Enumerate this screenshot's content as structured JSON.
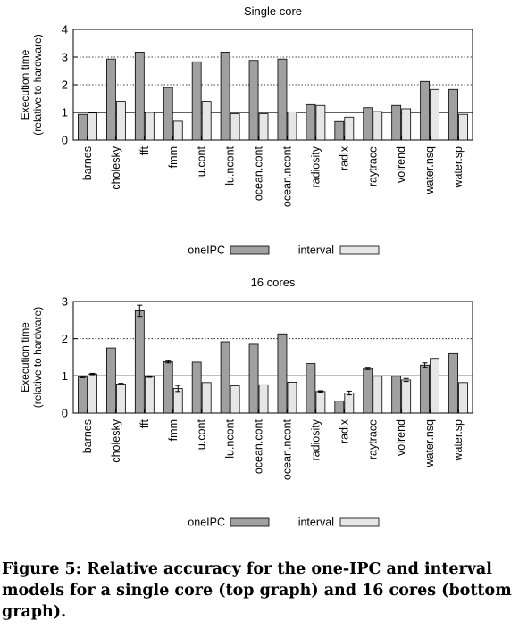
{
  "figure": {
    "caption": "Figure 5: Relative accuracy for the one-IPC and interval models for a single core (top graph) and 16 cores (bottom graph)."
  },
  "colors": {
    "oneIPC": "#a0a0a0",
    "interval": "#e6e6e6",
    "stroke": "#000000"
  },
  "chart_data": [
    {
      "type": "bar",
      "title": "Single core",
      "ylabel": "Execution time (relative to hardware)",
      "ylabel_lines": [
        "Execution time",
        "(relative to hardware)"
      ],
      "xlabel": "",
      "ylim": [
        0,
        4
      ],
      "yticks": [
        0,
        1,
        2,
        3,
        4
      ],
      "grid": "dotted horizontal at 2, 3 and 4; solid reference line at 1",
      "legend_position": "bottom-center",
      "categories": [
        "barnes",
        "cholesky",
        "fft",
        "fmm",
        "lu.cont",
        "lu.ncont",
        "ocean.cont",
        "ocean.ncont",
        "radiosity",
        "radix",
        "raytrace",
        "volrend",
        "water.nsq",
        "water.sp"
      ],
      "series": [
        {
          "name": "oneIPC",
          "values": [
            0.93,
            2.93,
            3.18,
            1.9,
            2.83,
            3.18,
            2.88,
            2.93,
            1.28,
            0.67,
            1.17,
            1.25,
            2.12,
            1.83
          ]
        },
        {
          "name": "interval",
          "values": [
            0.98,
            1.4,
            1.0,
            0.68,
            1.4,
            0.95,
            0.95,
            1.02,
            1.25,
            0.83,
            1.03,
            1.13,
            1.83,
            0.93
          ]
        }
      ]
    },
    {
      "type": "bar",
      "title": "16 cores",
      "ylabel": "Execution time (relative to hardware)",
      "ylabel_lines": [
        "Execution time",
        "(relative to hardware)"
      ],
      "xlabel": "",
      "ylim": [
        0,
        3
      ],
      "yticks": [
        0,
        1,
        2,
        3
      ],
      "grid": "dotted horizontal at 2 and 3; solid reference line at 1",
      "legend_position": "bottom-center",
      "categories": [
        "barnes",
        "cholesky",
        "fft",
        "fmm",
        "lu.cont",
        "lu.ncont",
        "ocean.cont",
        "ocean.ncont",
        "radiosity",
        "radix",
        "raytrace",
        "volrend",
        "water.nsq",
        "water.sp"
      ],
      "series": [
        {
          "name": "oneIPC",
          "values": [
            0.97,
            1.75,
            2.75,
            1.38,
            1.37,
            1.92,
            1.85,
            2.13,
            1.33,
            0.32,
            1.2,
            0.99,
            1.29,
            1.6
          ],
          "error": [
            0.02,
            0,
            0.15,
            0.03,
            0,
            0,
            0,
            0,
            0,
            0,
            0.03,
            0,
            0.06,
            0
          ]
        },
        {
          "name": "interval",
          "values": [
            1.05,
            0.78,
            0.98,
            0.66,
            0.82,
            0.73,
            0.76,
            0.83,
            0.58,
            0.54,
            0.99,
            0.89,
            1.47,
            0.82
          ],
          "error": [
            0.02,
            0.02,
            0.02,
            0.08,
            0,
            0,
            0,
            0,
            0.02,
            0.05,
            0,
            0.04,
            0,
            0
          ]
        }
      ]
    }
  ]
}
